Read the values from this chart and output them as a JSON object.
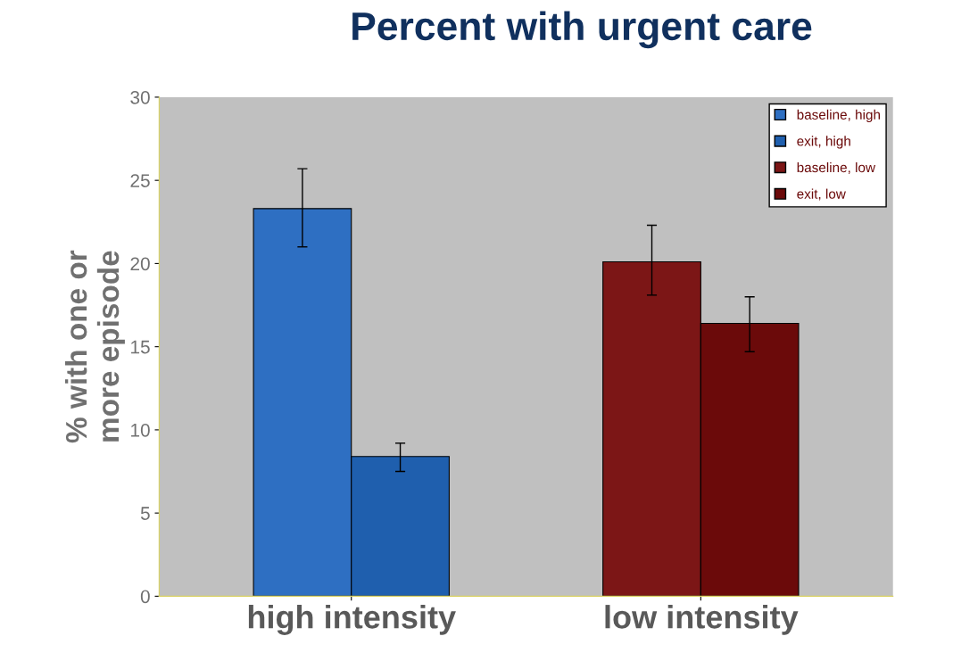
{
  "chart_data": {
    "type": "bar",
    "title": "Percent with urgent care",
    "ylabel": "% with one or\nmore episode",
    "categories": [
      "high intensity",
      "low intensity"
    ],
    "series": [
      {
        "name": "baseline, high",
        "color": "#2e6fc2",
        "values": [
          23.3,
          null
        ],
        "errors": [
          [
            21.0,
            25.7
          ],
          null
        ]
      },
      {
        "name": "exit, high",
        "color": "#1f5fae",
        "values": [
          8.4,
          null
        ],
        "errors": [
          [
            7.5,
            9.2
          ],
          null
        ]
      },
      {
        "name": "baseline, low",
        "color": "#7c1616",
        "values": [
          null,
          20.1
        ],
        "errors": [
          null,
          [
            18.1,
            22.3
          ]
        ]
      },
      {
        "name": "exit, low",
        "color": "#6b0a0a",
        "values": [
          null,
          16.4
        ],
        "errors": [
          null,
          [
            14.7,
            18.0
          ]
        ]
      }
    ],
    "ylim": [
      0,
      30
    ],
    "yticks": [
      0,
      5,
      10,
      15,
      20,
      25,
      30
    ],
    "grid": false,
    "legend": "top right"
  }
}
